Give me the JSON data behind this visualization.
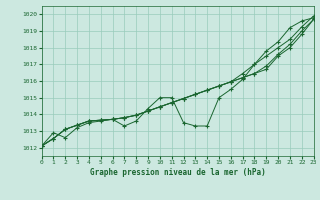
{
  "background_color": "#cce8e0",
  "plot_bg_color": "#cce8e0",
  "grid_color": "#99ccbb",
  "line_color": "#1a6630",
  "marker_color": "#1a6630",
  "bottom_label": "Graphe pression niveau de la mer (hPa)",
  "xlim": [
    0,
    23
  ],
  "ylim": [
    1011.5,
    1020.5
  ],
  "yticks": [
    1012,
    1013,
    1014,
    1015,
    1016,
    1017,
    1018,
    1019,
    1020
  ],
  "xticks": [
    0,
    1,
    2,
    3,
    4,
    5,
    6,
    7,
    8,
    9,
    10,
    11,
    12,
    13,
    14,
    15,
    16,
    17,
    18,
    19,
    20,
    21,
    22,
    23
  ],
  "series": [
    [
      1012.1,
      1012.9,
      1012.6,
      1013.2,
      1013.5,
      1013.6,
      1013.7,
      1013.3,
      1013.6,
      1014.35,
      1015.0,
      1015.0,
      1013.5,
      1013.3,
      1013.3,
      1015.0,
      1015.5,
      1016.1,
      1017.0,
      1017.8,
      1018.35,
      1019.2,
      1019.6,
      1019.8
    ],
    [
      1012.1,
      1012.55,
      1013.1,
      1013.35,
      1013.6,
      1013.65,
      1013.7,
      1013.8,
      1013.95,
      1014.2,
      1014.45,
      1014.7,
      1014.95,
      1015.2,
      1015.45,
      1015.7,
      1015.95,
      1016.2,
      1016.45,
      1016.7,
      1017.5,
      1018.0,
      1018.8,
      1019.7
    ],
    [
      1012.1,
      1012.55,
      1013.1,
      1013.35,
      1013.6,
      1013.65,
      1013.7,
      1013.8,
      1013.95,
      1014.2,
      1014.45,
      1014.7,
      1014.95,
      1015.2,
      1015.45,
      1015.7,
      1015.95,
      1016.2,
      1016.45,
      1016.9,
      1017.6,
      1018.2,
      1019.0,
      1019.7
    ],
    [
      1012.1,
      1012.55,
      1013.1,
      1013.35,
      1013.6,
      1013.65,
      1013.7,
      1013.8,
      1013.95,
      1014.2,
      1014.45,
      1014.7,
      1014.95,
      1015.2,
      1015.45,
      1015.7,
      1015.95,
      1016.45,
      1017.0,
      1017.5,
      1018.0,
      1018.5,
      1019.25,
      1019.9
    ]
  ]
}
